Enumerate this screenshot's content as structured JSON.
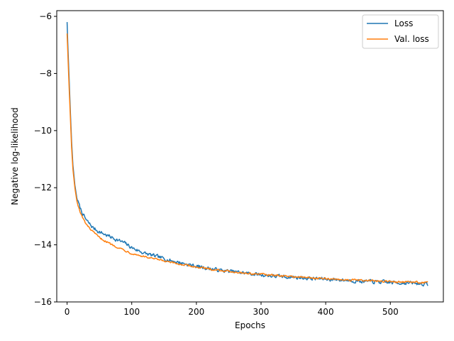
{
  "chart_data": {
    "type": "line",
    "title": "",
    "xlabel": "Epochs",
    "ylabel": "Negative log-likelihood",
    "xlim": [
      -16,
      582
    ],
    "ylim": [
      -16.0,
      -5.8
    ],
    "xticks": [
      0,
      100,
      200,
      300,
      400,
      500
    ],
    "yticks": [
      -16,
      -14,
      -12,
      -10,
      -8,
      -6
    ],
    "tick_labels": {
      "x": [
        "0",
        "100",
        "200",
        "300",
        "400",
        "500"
      ],
      "y": [
        "−16",
        "−14",
        "−12",
        "−10",
        "−8",
        "−6"
      ]
    },
    "grid": false,
    "legend": "top-right",
    "series": [
      {
        "name": "Loss",
        "color": "#1f77b4",
        "noise": 0.1,
        "points": [
          [
            0,
            -6.2
          ],
          [
            1,
            -6.9
          ],
          [
            3,
            -8.1
          ],
          [
            5,
            -9.3
          ],
          [
            7,
            -10.4
          ],
          [
            9,
            -11.2
          ],
          [
            12,
            -11.9
          ],
          [
            15,
            -12.35
          ],
          [
            20,
            -12.7
          ],
          [
            25,
            -12.95
          ],
          [
            30,
            -13.15
          ],
          [
            40,
            -13.4
          ],
          [
            50,
            -13.55
          ],
          [
            60,
            -13.65
          ],
          [
            70,
            -13.75
          ],
          [
            80,
            -13.85
          ],
          [
            90,
            -13.95
          ],
          [
            100,
            -14.1
          ],
          [
            120,
            -14.3
          ],
          [
            140,
            -14.42
          ],
          [
            160,
            -14.55
          ],
          [
            180,
            -14.65
          ],
          [
            200,
            -14.75
          ],
          [
            220,
            -14.83
          ],
          [
            240,
            -14.9
          ],
          [
            260,
            -14.95
          ],
          [
            280,
            -15.0
          ],
          [
            300,
            -15.05
          ],
          [
            320,
            -15.1
          ],
          [
            340,
            -15.12
          ],
          [
            360,
            -15.15
          ],
          [
            380,
            -15.18
          ],
          [
            400,
            -15.2
          ],
          [
            420,
            -15.22
          ],
          [
            440,
            -15.25
          ],
          [
            460,
            -15.28
          ],
          [
            480,
            -15.3
          ],
          [
            500,
            -15.32
          ],
          [
            520,
            -15.33
          ],
          [
            540,
            -15.35
          ],
          [
            558,
            -15.38
          ]
        ]
      },
      {
        "name": "Val. loss",
        "color": "#ff7f0e",
        "noise": 0.05,
        "points": [
          [
            0,
            -6.6
          ],
          [
            1,
            -7.2
          ],
          [
            3,
            -8.4
          ],
          [
            5,
            -9.5
          ],
          [
            7,
            -10.6
          ],
          [
            9,
            -11.35
          ],
          [
            12,
            -12.0
          ],
          [
            15,
            -12.45
          ],
          [
            20,
            -12.85
          ],
          [
            25,
            -13.1
          ],
          [
            30,
            -13.3
          ],
          [
            40,
            -13.55
          ],
          [
            50,
            -13.75
          ],
          [
            60,
            -13.88
          ],
          [
            70,
            -14.0
          ],
          [
            80,
            -14.1
          ],
          [
            90,
            -14.2
          ],
          [
            100,
            -14.3
          ],
          [
            120,
            -14.42
          ],
          [
            140,
            -14.52
          ],
          [
            160,
            -14.62
          ],
          [
            180,
            -14.7
          ],
          [
            200,
            -14.78
          ],
          [
            220,
            -14.85
          ],
          [
            240,
            -14.9
          ],
          [
            260,
            -14.95
          ],
          [
            280,
            -15.0
          ],
          [
            300,
            -15.03
          ],
          [
            320,
            -15.07
          ],
          [
            340,
            -15.1
          ],
          [
            360,
            -15.13
          ],
          [
            380,
            -15.16
          ],
          [
            400,
            -15.19
          ],
          [
            420,
            -15.21
          ],
          [
            440,
            -15.23
          ],
          [
            460,
            -15.25
          ],
          [
            480,
            -15.27
          ],
          [
            500,
            -15.29
          ],
          [
            520,
            -15.3
          ],
          [
            540,
            -15.31
          ],
          [
            558,
            -15.32
          ]
        ]
      }
    ]
  }
}
